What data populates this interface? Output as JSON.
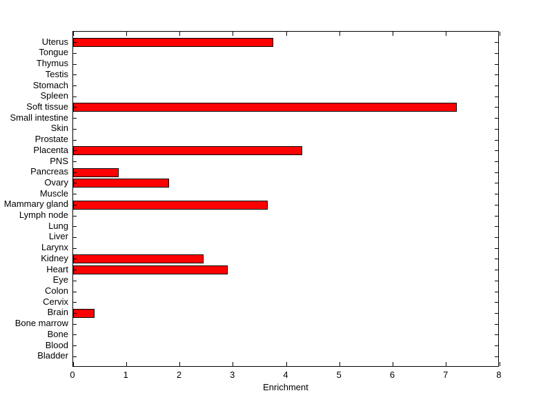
{
  "chart_data": {
    "type": "bar",
    "orientation": "horizontal",
    "title": "",
    "xlabel": "Enrichment",
    "ylabel": "",
    "xlim": [
      0,
      8
    ],
    "x_ticks": [
      0,
      1,
      2,
      3,
      4,
      5,
      6,
      7,
      8
    ],
    "categories": [
      "Uterus",
      "Tongue",
      "Thymus",
      "Testis",
      "Stomach",
      "Spleen",
      "Soft tissue",
      "Small intestine",
      "Skin",
      "Prostate",
      "Placenta",
      "PNS",
      "Pancreas",
      "Ovary",
      "Muscle",
      "Mammary gland",
      "Lymph node",
      "Lung",
      "Liver",
      "Larynx",
      "Kidney",
      "Heart",
      "Eye",
      "Colon",
      "Cervix",
      "Brain",
      "Bone marrow",
      "Bone",
      "Blood",
      "Bladder"
    ],
    "values": [
      3.75,
      0,
      0,
      0,
      0,
      0,
      7.2,
      0,
      0,
      0,
      4.3,
      0,
      0.85,
      1.8,
      0,
      3.65,
      0,
      0,
      0,
      0,
      2.45,
      2.9,
      0,
      0,
      0,
      0.4,
      0,
      0,
      0,
      0
    ],
    "bar_color": "#ff0000",
    "bar_edge_color": "#000000",
    "axis_color": "#000000",
    "background_color": "#ffffff",
    "grid": false,
    "legend": null,
    "tick_direction": "in"
  }
}
